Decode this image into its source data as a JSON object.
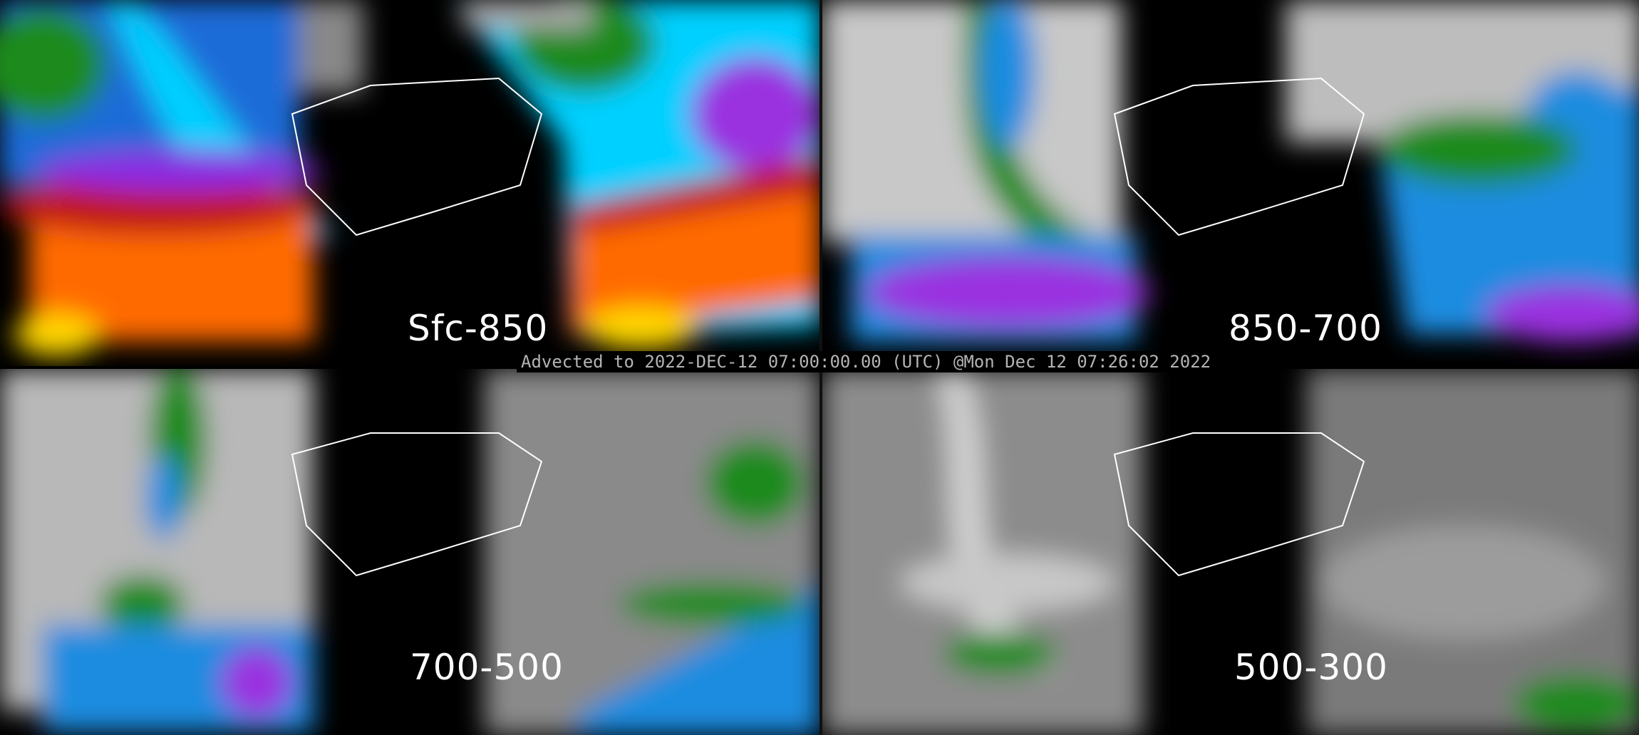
{
  "caption": "Advected to 2022-DEC-12 07:00:00.00 (UTC) @Mon Dec 12 07:26:02 2022",
  "panels": [
    {
      "label": "Sfc-850",
      "palette": [
        "#ff6a00",
        "#c01818",
        "#8a2be2",
        "#00d0ff",
        "#1e6cd8",
        "#1a8a1a",
        "#ffd700"
      ]
    },
    {
      "label": "850-700",
      "palette": [
        "#d0d0d0",
        "#1a8a1a",
        "#1e8ce0",
        "#00c8ff",
        "#9a30e0"
      ]
    },
    {
      "label": "700-500",
      "palette": [
        "#c8c8c8",
        "#1a8a1a",
        "#1e8ce0",
        "#9a30e0"
      ]
    },
    {
      "label": "500-300",
      "palette": [
        "#a0a0a0",
        "#d8d8d8",
        "#1a8a1a"
      ]
    }
  ]
}
